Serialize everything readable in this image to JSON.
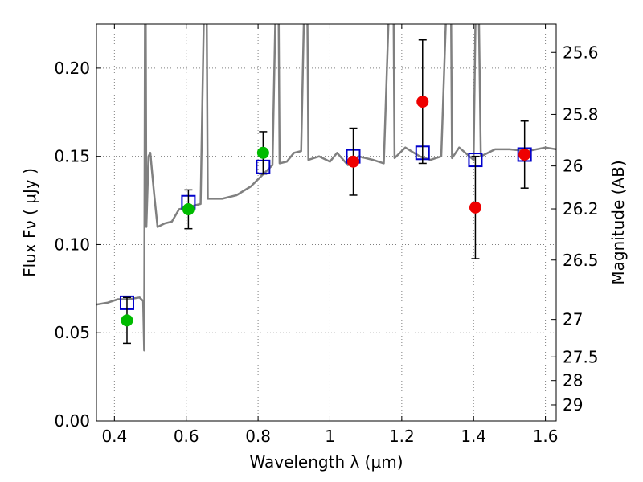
{
  "chart_data": {
    "type": "scatter",
    "title": "",
    "xlabel": "Wavelength  λ (μm)",
    "ylabel": "Flux  Fν  ( μJy )",
    "y2label": "Magnitude (AB)",
    "xlim": [
      0.35,
      1.63
    ],
    "ylim": [
      0.0,
      0.225
    ],
    "grid": true,
    "xticks": [
      {
        "value": 0.4,
        "label": "0.4"
      },
      {
        "value": 0.6,
        "label": "0.6"
      },
      {
        "value": 0.8,
        "label": "0.8"
      },
      {
        "value": 1.0,
        "label": "1"
      },
      {
        "value": 1.2,
        "label": "1.2"
      },
      {
        "value": 1.4,
        "label": "1.4"
      },
      {
        "value": 1.6,
        "label": "1.6"
      }
    ],
    "yticks": [
      {
        "value": 0.0,
        "label": "0.00"
      },
      {
        "value": 0.05,
        "label": "0.05"
      },
      {
        "value": 0.1,
        "label": "0.10"
      },
      {
        "value": 0.15,
        "label": "0.15"
      },
      {
        "value": 0.2,
        "label": "0.20"
      }
    ],
    "y2ticks": [
      {
        "value": 25.6,
        "label": "25.6"
      },
      {
        "value": 25.8,
        "label": "25.8"
      },
      {
        "value": 26,
        "label": "26"
      },
      {
        "value": 26.2,
        "label": "26.2"
      },
      {
        "value": 26.5,
        "label": "26.5"
      },
      {
        "value": 27,
        "label": "27"
      },
      {
        "value": 27.5,
        "label": "27.5"
      },
      {
        "value": 28,
        "label": "28"
      },
      {
        "value": 29,
        "label": "29"
      }
    ],
    "model_spectrum": {
      "color": "#808080",
      "points": [
        [
          0.35,
          0.066
        ],
        [
          0.38,
          0.067
        ],
        [
          0.41,
          0.069
        ],
        [
          0.44,
          0.069
        ],
        [
          0.47,
          0.07
        ],
        [
          0.48,
          0.068
        ],
        [
          0.483,
          0.04
        ],
        [
          0.486,
          0.3
        ],
        [
          0.489,
          0.11
        ],
        [
          0.495,
          0.15
        ],
        [
          0.5,
          0.152
        ],
        [
          0.51,
          0.13
        ],
        [
          0.52,
          0.11
        ],
        [
          0.54,
          0.112
        ],
        [
          0.56,
          0.113
        ],
        [
          0.58,
          0.12
        ],
        [
          0.6,
          0.121
        ],
        [
          0.62,
          0.122
        ],
        [
          0.64,
          0.123
        ],
        [
          0.655,
          0.3
        ],
        [
          0.66,
          0.126
        ],
        [
          0.7,
          0.126
        ],
        [
          0.74,
          0.128
        ],
        [
          0.78,
          0.133
        ],
        [
          0.8,
          0.137
        ],
        [
          0.82,
          0.141
        ],
        [
          0.84,
          0.145
        ],
        [
          0.855,
          0.3
        ],
        [
          0.86,
          0.146
        ],
        [
          0.88,
          0.147
        ],
        [
          0.9,
          0.152
        ],
        [
          0.92,
          0.153
        ],
        [
          0.935,
          0.3
        ],
        [
          0.94,
          0.148
        ],
        [
          0.97,
          0.15
        ],
        [
          1.0,
          0.147
        ],
        [
          1.02,
          0.152
        ],
        [
          1.05,
          0.145
        ],
        [
          1.08,
          0.15
        ],
        [
          1.12,
          0.148
        ],
        [
          1.15,
          0.146
        ],
        [
          1.175,
          0.3
        ],
        [
          1.18,
          0.149
        ],
        [
          1.21,
          0.155
        ],
        [
          1.25,
          0.15
        ],
        [
          1.28,
          0.148
        ],
        [
          1.31,
          0.15
        ],
        [
          1.335,
          0.3
        ],
        [
          1.34,
          0.149
        ],
        [
          1.36,
          0.155
        ],
        [
          1.4,
          0.148
        ],
        [
          1.41,
          0.3
        ],
        [
          1.42,
          0.15
        ],
        [
          1.46,
          0.154
        ],
        [
          1.5,
          0.154
        ],
        [
          1.55,
          0.153
        ],
        [
          1.6,
          0.155
        ],
        [
          1.63,
          0.154
        ]
      ]
    },
    "series": [
      {
        "marker": "square-open",
        "color": "#0000cc",
        "points": [
          {
            "x": 0.435,
            "y": 0.067
          },
          {
            "x": 0.606,
            "y": 0.124
          },
          {
            "x": 0.814,
            "y": 0.144
          },
          {
            "x": 1.065,
            "y": 0.15
          },
          {
            "x": 1.258,
            "y": 0.152
          },
          {
            "x": 1.405,
            "y": 0.148
          },
          {
            "x": 1.542,
            "y": 0.151
          }
        ]
      },
      {
        "marker": "circle",
        "color": "#00bb00",
        "points": [
          {
            "x": 0.435,
            "y": 0.057,
            "err": 0.013
          },
          {
            "x": 0.606,
            "y": 0.12,
            "err": 0.011
          },
          {
            "x": 0.814,
            "y": 0.152,
            "err": 0.012
          }
        ]
      },
      {
        "marker": "circle",
        "color": "#ee0000",
        "points": [
          {
            "x": 1.065,
            "y": 0.147,
            "err": 0.019
          },
          {
            "x": 1.258,
            "y": 0.181,
            "err": 0.035
          },
          {
            "x": 1.405,
            "y": 0.121,
            "err": 0.029
          },
          {
            "x": 1.542,
            "y": 0.151,
            "err": 0.019
          }
        ]
      }
    ]
  }
}
